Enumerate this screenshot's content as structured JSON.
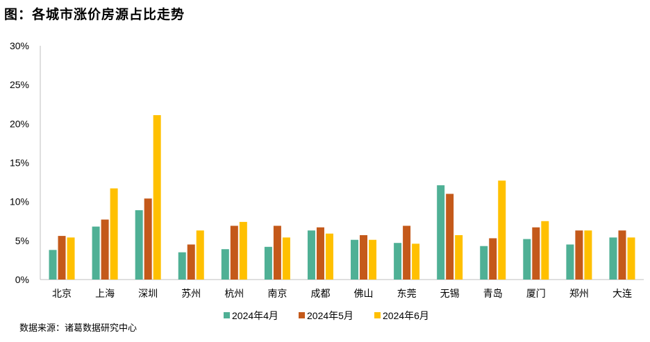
{
  "title": "图：各城市涨价房源占比走势",
  "source": "数据来源：诸葛数据研究中心",
  "chart_data": {
    "type": "bar",
    "categories": [
      "北京",
      "上海",
      "深圳",
      "苏州",
      "杭州",
      "南京",
      "成都",
      "佛山",
      "东莞",
      "无锡",
      "青岛",
      "厦门",
      "郑州",
      "大连"
    ],
    "series": [
      {
        "name": "2024年4月",
        "color": "#4fb095",
        "values": [
          3.8,
          6.8,
          8.9,
          3.5,
          3.9,
          4.2,
          6.3,
          5.1,
          4.7,
          12.1,
          4.3,
          5.2,
          4.5,
          5.4
        ]
      },
      {
        "name": "2024年5月",
        "color": "#c4591a",
        "values": [
          5.6,
          7.7,
          10.4,
          4.5,
          6.9,
          6.9,
          6.7,
          5.7,
          6.9,
          11.0,
          5.3,
          6.7,
          6.3,
          6.3
        ]
      },
      {
        "name": "2024年6月",
        "color": "#ffc000",
        "values": [
          5.4,
          11.7,
          21.1,
          6.3,
          7.4,
          5.4,
          5.9,
          5.1,
          4.6,
          5.7,
          12.7,
          7.5,
          6.3,
          5.4
        ]
      }
    ],
    "yticks": [
      "0%",
      "5%",
      "10%",
      "15%",
      "20%",
      "25%",
      "30%"
    ],
    "ylim": [
      0,
      30
    ],
    "xlabel": "",
    "ylabel": "",
    "legend": "bottom",
    "grid": false
  }
}
